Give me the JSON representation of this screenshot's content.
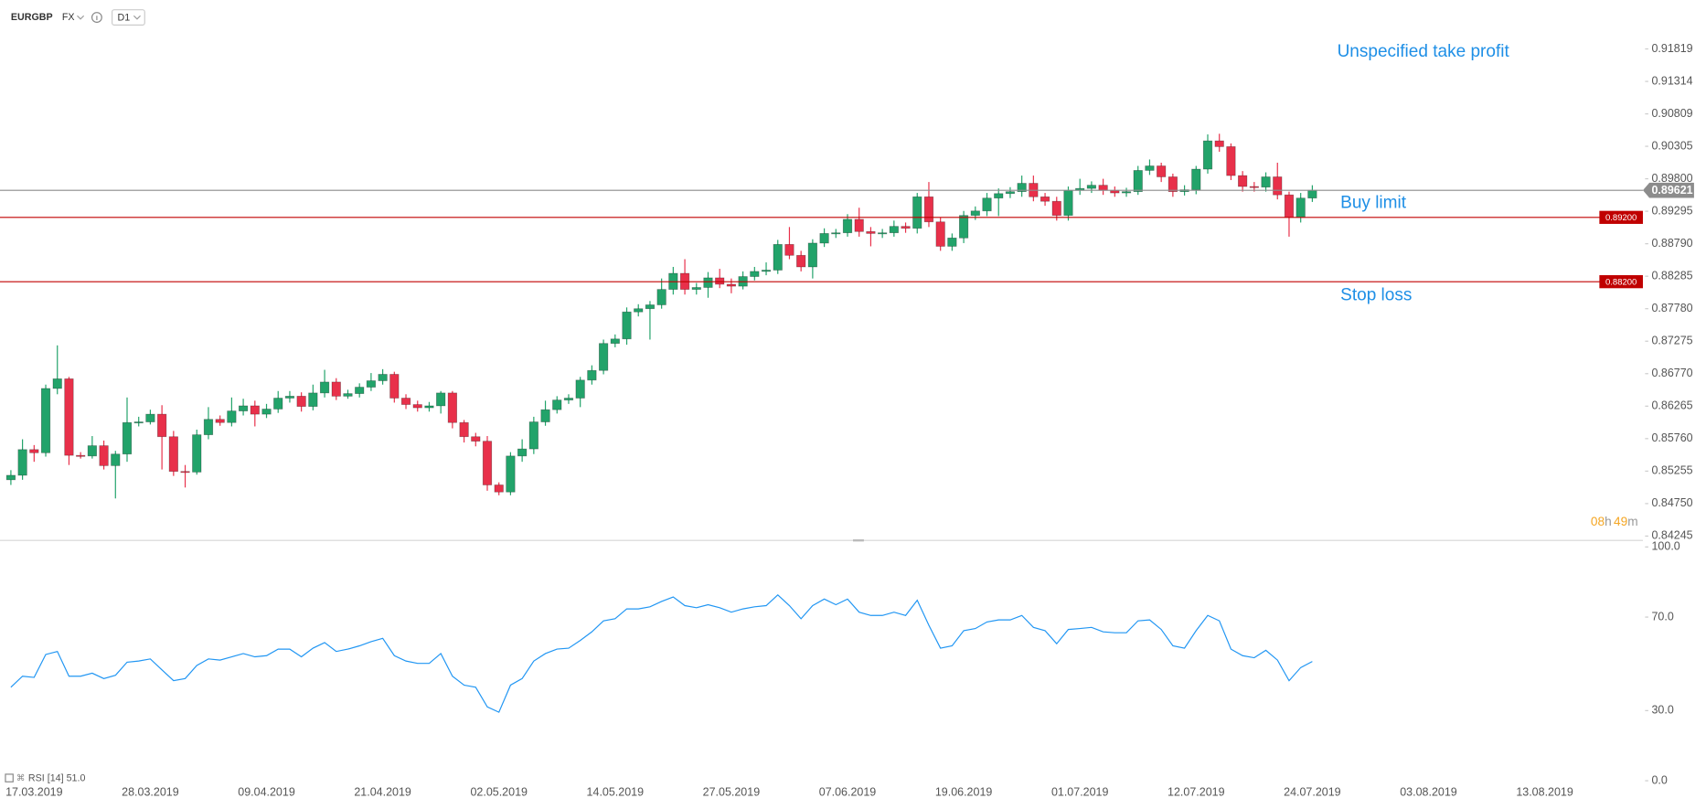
{
  "toolbar": {
    "symbol": "EURGBP",
    "market": "FX",
    "timeframe": "D1"
  },
  "chart_data": [
    {
      "type": "candlestick",
      "categories": [
        null,
        null,
        "17.03.2019",
        null,
        null,
        null,
        null,
        null,
        null,
        null,
        null,
        null,
        "28.03.2019",
        null,
        null,
        null,
        null,
        null,
        null,
        null,
        null,
        null,
        "09.04.2019",
        null,
        null,
        null,
        null,
        null,
        null,
        null,
        null,
        null,
        "21.04.2019",
        null,
        null,
        null,
        null,
        null,
        null,
        null,
        null,
        null,
        "02.05.2019",
        null,
        null,
        null,
        null,
        null,
        null,
        null,
        null,
        null,
        "14.05.2019",
        null,
        null,
        null,
        null,
        null,
        null,
        null,
        null,
        null,
        "27.05.2019",
        null,
        null,
        null,
        null,
        null,
        null,
        null,
        null,
        null,
        "07.06.2019",
        null,
        null,
        null,
        null,
        null,
        null,
        null,
        null,
        null,
        "19.06.2019",
        null,
        null,
        null,
        null,
        null,
        null,
        null,
        null,
        null,
        "01.07.2019",
        null,
        null,
        null,
        null,
        null,
        null,
        null,
        null,
        null,
        "12.07.2019",
        null,
        null,
        null,
        null,
        null,
        null,
        null,
        null,
        null,
        "24.07.2019",
        null,
        null,
        null,
        null,
        null,
        null,
        null,
        null,
        null,
        "03.08.2019",
        null,
        null,
        null,
        null,
        null,
        null,
        null,
        null,
        null,
        "13.08.2019",
        null,
        null
      ],
      "open": [
        0.8512,
        0.8519,
        0.8559,
        0.8554,
        0.8654,
        0.8669,
        0.855,
        0.8549,
        0.8565,
        0.8534,
        0.8552,
        0.8601,
        0.8602,
        0.8614,
        0.8579,
        0.8525,
        0.8524,
        0.8582,
        0.8606,
        0.8601,
        0.8619,
        0.8627,
        0.8614,
        0.8622,
        0.8639,
        0.8642,
        0.8626,
        0.8647,
        0.8664,
        0.8642,
        0.8646,
        0.8656,
        0.8666,
        0.8676,
        0.8639,
        0.8629,
        0.8624,
        0.8627,
        0.8647,
        0.8601,
        0.8579,
        0.8572,
        0.8504,
        0.8493,
        0.8549,
        0.856,
        0.8602,
        0.8621,
        0.8636,
        0.8639,
        0.8667,
        0.8682,
        0.8724,
        0.8731,
        0.8773,
        0.8778,
        0.8784,
        0.8808,
        0.8833,
        0.8808,
        0.8811,
        0.8826,
        0.8816,
        0.8813,
        0.8828,
        0.8836,
        0.8838,
        0.8878,
        0.8861,
        0.8843,
        0.888,
        0.8895,
        0.8896,
        0.8917,
        0.8898,
        0.8895,
        0.8896,
        0.8906,
        0.8903,
        0.8952,
        0.8913,
        0.8875,
        0.8888,
        0.8923,
        0.893,
        0.895,
        0.8957,
        0.896,
        0.8973,
        0.8952,
        0.8945,
        0.8923,
        0.8962,
        0.8965,
        0.897,
        0.8962,
        0.8958,
        0.896,
        0.8993,
        0.9,
        0.8983,
        0.896,
        0.8963,
        0.8995,
        0.9039,
        0.903,
        0.8985,
        0.8968,
        0.8967,
        0.8983,
        0.8955,
        0.892,
        0.895,
        null,
        null,
        null,
        null,
        null,
        null,
        null,
        null,
        null,
        null,
        null,
        null,
        null,
        null,
        null,
        null,
        null,
        null,
        null,
        null,
        null,
        null
      ],
      "high": [
        0.8527,
        0.8575,
        0.8566,
        0.866,
        0.8721,
        0.8672,
        0.8555,
        0.858,
        0.8573,
        0.8557,
        0.864,
        0.861,
        0.8621,
        0.8628,
        0.8588,
        0.8535,
        0.859,
        0.8625,
        0.8612,
        0.864,
        0.8638,
        0.8635,
        0.863,
        0.865,
        0.865,
        0.8648,
        0.866,
        0.8683,
        0.867,
        0.8652,
        0.8662,
        0.8678,
        0.8684,
        0.868,
        0.8645,
        0.8635,
        0.8633,
        0.865,
        0.865,
        0.8605,
        0.8585,
        0.858,
        0.8508,
        0.8555,
        0.8575,
        0.861,
        0.8635,
        0.8642,
        0.8645,
        0.8672,
        0.869,
        0.873,
        0.8738,
        0.878,
        0.8785,
        0.879,
        0.8825,
        0.8843,
        0.8855,
        0.8818,
        0.8835,
        0.884,
        0.8825,
        0.8836,
        0.8843,
        0.885,
        0.8885,
        0.8905,
        0.8868,
        0.8886,
        0.8903,
        0.8902,
        0.8925,
        0.8935,
        0.8905,
        0.8902,
        0.8915,
        0.8912,
        0.8958,
        0.8975,
        0.892,
        0.8895,
        0.893,
        0.8937,
        0.8958,
        0.8965,
        0.8967,
        0.8985,
        0.8985,
        0.8958,
        0.8952,
        0.8968,
        0.898,
        0.8976,
        0.898,
        0.8968,
        0.8966,
        0.9,
        0.901,
        0.9005,
        0.8988,
        0.897,
        0.9,
        0.9049,
        0.905,
        0.9035,
        0.8992,
        0.8975,
        0.899,
        0.9005,
        0.896,
        0.8958,
        0.897,
        null,
        null,
        null,
        null,
        null,
        null,
        null,
        null,
        null,
        null,
        null,
        null,
        null,
        null,
        null,
        null,
        null,
        null,
        null,
        null,
        null,
        null
      ],
      "low": [
        0.8504,
        0.8512,
        0.854,
        0.8548,
        0.8645,
        0.8535,
        0.8545,
        0.8545,
        0.8528,
        0.8483,
        0.854,
        0.8595,
        0.8598,
        0.8528,
        0.8518,
        0.85,
        0.852,
        0.8575,
        0.8596,
        0.8595,
        0.8612,
        0.8595,
        0.8608,
        0.8616,
        0.8632,
        0.8618,
        0.862,
        0.864,
        0.8636,
        0.8638,
        0.864,
        0.865,
        0.866,
        0.8632,
        0.8622,
        0.8618,
        0.8618,
        0.8615,
        0.8592,
        0.857,
        0.8564,
        0.8495,
        0.8488,
        0.8488,
        0.854,
        0.8552,
        0.8596,
        0.8615,
        0.863,
        0.8625,
        0.866,
        0.8676,
        0.8718,
        0.8722,
        0.8766,
        0.873,
        0.8778,
        0.88,
        0.88,
        0.88,
        0.8795,
        0.881,
        0.8802,
        0.8808,
        0.8822,
        0.883,
        0.8832,
        0.8855,
        0.8836,
        0.8825,
        0.8874,
        0.8888,
        0.889,
        0.889,
        0.8875,
        0.8888,
        0.889,
        0.8896,
        0.8895,
        0.8905,
        0.8868,
        0.8868,
        0.888,
        0.8916,
        0.8922,
        0.8922,
        0.895,
        0.8952,
        0.8945,
        0.8938,
        0.8915,
        0.8915,
        0.8955,
        0.8958,
        0.8955,
        0.8952,
        0.8952,
        0.8955,
        0.8986,
        0.8975,
        0.8952,
        0.8954,
        0.8956,
        0.8988,
        0.9022,
        0.8978,
        0.896,
        0.896,
        0.896,
        0.8948,
        0.889,
        0.8912,
        0.8944,
        null,
        null,
        null,
        null,
        null,
        null,
        null,
        null,
        null,
        null,
        null,
        null,
        null,
        null,
        null,
        null,
        null,
        null,
        null,
        null,
        null,
        null
      ],
      "close": [
        0.8519,
        0.8559,
        0.8554,
        0.8654,
        0.8669,
        0.855,
        0.8549,
        0.8565,
        0.8534,
        0.8552,
        0.8601,
        0.8602,
        0.8614,
        0.8579,
        0.8525,
        0.8524,
        0.8582,
        0.8606,
        0.8601,
        0.8619,
        0.8627,
        0.8614,
        0.8622,
        0.8639,
        0.8642,
        0.8626,
        0.8647,
        0.8664,
        0.8642,
        0.8646,
        0.8656,
        0.8666,
        0.8676,
        0.8639,
        0.8629,
        0.8624,
        0.8627,
        0.8647,
        0.8601,
        0.8579,
        0.8572,
        0.8504,
        0.8493,
        0.8549,
        0.856,
        0.8602,
        0.8621,
        0.8636,
        0.8639,
        0.8667,
        0.8682,
        0.8724,
        0.8731,
        0.8773,
        0.8778,
        0.8784,
        0.8808,
        0.8833,
        0.8808,
        0.8811,
        0.8826,
        0.8816,
        0.8813,
        0.8828,
        0.8836,
        0.8838,
        0.8878,
        0.8861,
        0.8843,
        0.888,
        0.8895,
        0.8896,
        0.8917,
        0.8898,
        0.8895,
        0.8896,
        0.8906,
        0.8903,
        0.8952,
        0.8913,
        0.8875,
        0.8888,
        0.8923,
        0.893,
        0.895,
        0.8957,
        0.896,
        0.8973,
        0.8952,
        0.8945,
        0.8923,
        0.8962,
        0.8965,
        0.897,
        0.8962,
        0.8958,
        0.896,
        0.8993,
        0.9,
        0.8983,
        0.896,
        0.8963,
        0.8995,
        0.9039,
        0.903,
        0.8985,
        0.8968,
        0.8967,
        0.8983,
        0.8955,
        0.892,
        0.895,
        0.89621,
        null,
        null,
        null,
        null,
        null,
        null,
        null,
        null,
        null,
        null,
        null,
        null,
        null,
        null,
        null,
        null,
        null,
        null,
        null,
        null,
        null,
        null
      ],
      "up_color": "#22a36a",
      "down_color": "#e8304a",
      "ylim": [
        0.84245,
        0.91819
      ],
      "yticks": [
        0.84245,
        {
          "value": 0.8475,
          "label": "0.84750"
        },
        0.85255,
        {
          "value": 0.8576,
          "label": "0.85760"
        },
        0.86265,
        {
          "value": 0.8677,
          "label": "0.86770"
        },
        0.87275,
        {
          "value": 0.8778,
          "label": "0.87780"
        },
        0.88285,
        {
          "value": 0.8879,
          "label": "0.88790"
        },
        0.89295,
        {
          "value": 0.898,
          "label": "0.89800"
        },
        0.90305,
        0.90809,
        0.91314,
        0.91819
      ],
      "last_price": 0.89621,
      "last_price_color": "#8c8c8c",
      "levels": [
        {
          "name": "Buy limit",
          "value": 0.892,
          "label": "0.89200",
          "color": "#c00000"
        },
        {
          "name": "Stop loss",
          "value": 0.882,
          "label": "0.88200",
          "color": "#c00000"
        }
      ],
      "annotation": "Unspecified take profit",
      "countdown": [
        "08",
        "h",
        "49",
        "m"
      ]
    },
    {
      "type": "line",
      "series": [
        {
          "name": "RSI [14]",
          "color": "#2196f3",
          "values": [
            40.0,
            44.7,
            44.2,
            54.0,
            55.3,
            44.7,
            44.7,
            46.0,
            43.7,
            45.1,
            50.7,
            51.2,
            52.1,
            47.4,
            42.8,
            43.7,
            49.3,
            52.1,
            51.6,
            53.0,
            54.4,
            53.0,
            53.5,
            56.3,
            56.3,
            53.0,
            56.7,
            59.1,
            55.3,
            56.3,
            57.7,
            59.5,
            60.9,
            53.5,
            51.2,
            50.2,
            50.2,
            54.4,
            44.7,
            40.9,
            40.0,
            31.6,
            29.3,
            40.9,
            43.7,
            51.2,
            54.4,
            56.3,
            56.7,
            60.0,
            63.7,
            68.4,
            69.3,
            73.5,
            73.5,
            74.4,
            76.7,
            78.6,
            74.9,
            74.0,
            75.3,
            74.0,
            72.1,
            73.5,
            74.4,
            74.9,
            79.5,
            74.9,
            69.3,
            74.9,
            77.7,
            75.3,
            77.7,
            72.1,
            70.7,
            70.7,
            72.1,
            70.7,
            77.2,
            66.5,
            56.7,
            57.7,
            64.2,
            65.1,
            67.9,
            68.8,
            68.8,
            70.7,
            65.6,
            64.2,
            58.6,
            64.7,
            65.1,
            65.6,
            63.7,
            63.3,
            63.3,
            68.4,
            68.8,
            64.7,
            57.7,
            56.7,
            64.2,
            70.7,
            68.4,
            56.3,
            53.5,
            52.6,
            55.8,
            51.6,
            42.8,
            48.4,
            51.0,
            null,
            null,
            null,
            null,
            null,
            null,
            null,
            null,
            null,
            null,
            null,
            null,
            null,
            null,
            null,
            null,
            null,
            null,
            null,
            null,
            null,
            null
          ]
        }
      ],
      "legend_value": {
        "value": 51,
        "label": "51.0"
      },
      "ylim": [
        0,
        100
      ],
      "yticks": [
        {
          "value": 0,
          "label": "0.0"
        },
        {
          "value": 30,
          "label": "30.0"
        },
        {
          "value": 70,
          "label": "70.0"
        },
        {
          "value": 100,
          "label": "100.0"
        }
      ]
    }
  ]
}
